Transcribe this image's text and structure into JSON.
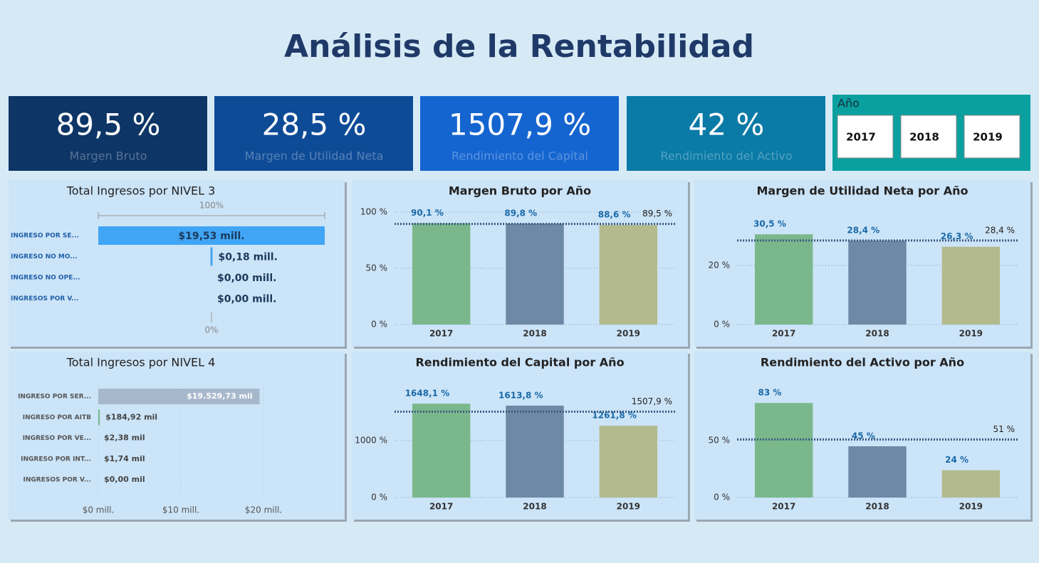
{
  "title": "Análisis de la Rentabilidad",
  "kpis": [
    {
      "value": "89,5 %",
      "label": "Margen Bruto",
      "color": "#0d3566"
    },
    {
      "value": "28,5 %",
      "label": "Margen de Utilidad Neta",
      "color": "#0e4b97"
    },
    {
      "value": "1507,9 %",
      "label": "Rendimiento del Capital",
      "color": "#1565d0"
    },
    {
      "value": "42 %",
      "label": "Rendimiento del Activo",
      "color": "#0a7aa6"
    }
  ],
  "slicer": {
    "title": "Año",
    "options": [
      "2017",
      "2018",
      "2019"
    ]
  },
  "chart_data": [
    {
      "type": "funnel",
      "title": "Total Ingresos por NIVEL 3",
      "categories": [
        "INGRESO POR SE...",
        "INGRESO NO MO...",
        "INGRESO NO OPE...",
        "INGRESOS POR V..."
      ],
      "values": [
        19.53,
        0.18,
        0.0,
        0.0
      ],
      "value_labels": [
        "$19,53 mill.",
        "$0,18 mill.",
        "$0,00 mill.",
        "$0,00 mill."
      ],
      "top_label": "100%",
      "bottom_label": "0%",
      "color": "#41a5f5"
    },
    {
      "type": "bar",
      "title": "Margen Bruto por Año",
      "categories": [
        "2017",
        "2018",
        "2019"
      ],
      "values": [
        90.1,
        89.8,
        88.6
      ],
      "value_labels": [
        "90,1 %",
        "89,8 %",
        "88,6 %"
      ],
      "colors": [
        "#7ab88c",
        "#6e89a5",
        "#b3bb8e"
      ],
      "ylim": [
        0,
        100
      ],
      "yticks": [
        {
          "value": 0,
          "label": "0 %"
        },
        {
          "value": 50,
          "label": "50 %"
        },
        {
          "value": 100,
          "label": "100 %"
        }
      ],
      "reference_line": {
        "value": 89.5,
        "label": "89,5 %"
      },
      "grid": true
    },
    {
      "type": "bar",
      "title": "Margen de Utilidad Neta por Año",
      "categories": [
        "2017",
        "2018",
        "2019"
      ],
      "values": [
        30.5,
        28.4,
        26.3
      ],
      "value_labels": [
        "30,5 %",
        "28,4 %",
        "26,3 %"
      ],
      "colors": [
        "#7ab88c",
        "#6e89a5",
        "#b3bb8e"
      ],
      "ylim": [
        0,
        38
      ],
      "yticks": [
        {
          "value": 0,
          "label": "0 %"
        },
        {
          "value": 20,
          "label": "20 %"
        }
      ],
      "reference_line": {
        "value": 28.4,
        "label": "28,4 %"
      },
      "grid": true
    },
    {
      "type": "hbar",
      "title": "Total Ingresos por NIVEL 4",
      "categories": [
        "INGRESO POR SER...",
        "INGRESO POR AITB",
        "INGRESO POR VE...",
        "INGRESO POR INT...",
        "INGRESOS POR V..."
      ],
      "values": [
        19.52973,
        0.18492,
        0.00238,
        0.00174,
        0.0
      ],
      "value_labels": [
        "$19.529,73 mil",
        "$184,92 mil",
        "$2,38 mil",
        "$1,74 mil",
        "$0,00 mil"
      ],
      "colors": [
        "#a8b8cc",
        "#7ab88c",
        "#7ab88c",
        "#7ab88c",
        "#7ab88c"
      ],
      "xlim": [
        0,
        28
      ],
      "xticks": [
        {
          "value": 0,
          "label": "$0 mill."
        },
        {
          "value": 10,
          "label": "$10 mill."
        },
        {
          "value": 20,
          "label": "$20 mill."
        }
      ],
      "grid": true
    },
    {
      "type": "bar",
      "title": "Rendimiento del Capital por Año",
      "categories": [
        "2017",
        "2018",
        "2019"
      ],
      "values": [
        1648.1,
        1613.8,
        1261.8
      ],
      "value_labels": [
        "1648,1 %",
        "1613,8 %",
        "1261,8 %"
      ],
      "colors": [
        "#7ab88c",
        "#6e89a5",
        "#b3bb8e"
      ],
      "ylim": [
        0,
        2000
      ],
      "yticks": [
        {
          "value": 0,
          "label": "0 %"
        },
        {
          "value": 1000,
          "label": "1000 %"
        }
      ],
      "reference_line": {
        "value": 1507.9,
        "label": "1507,9 %"
      },
      "grid": true
    },
    {
      "type": "bar",
      "title": "Rendimiento del Activo por Año",
      "categories": [
        "2017",
        "2018",
        "2019"
      ],
      "values": [
        83,
        45,
        24
      ],
      "value_labels": [
        "83 %",
        "45 %",
        "24 %"
      ],
      "colors": [
        "#7ab88c",
        "#6e89a5",
        "#b3bb8e"
      ],
      "ylim": [
        0,
        100
      ],
      "yticks": [
        {
          "value": 0,
          "label": "0 %"
        },
        {
          "value": 50,
          "label": "50 %"
        }
      ],
      "reference_line": {
        "value": 51,
        "label": "51 %"
      },
      "grid": true
    }
  ]
}
